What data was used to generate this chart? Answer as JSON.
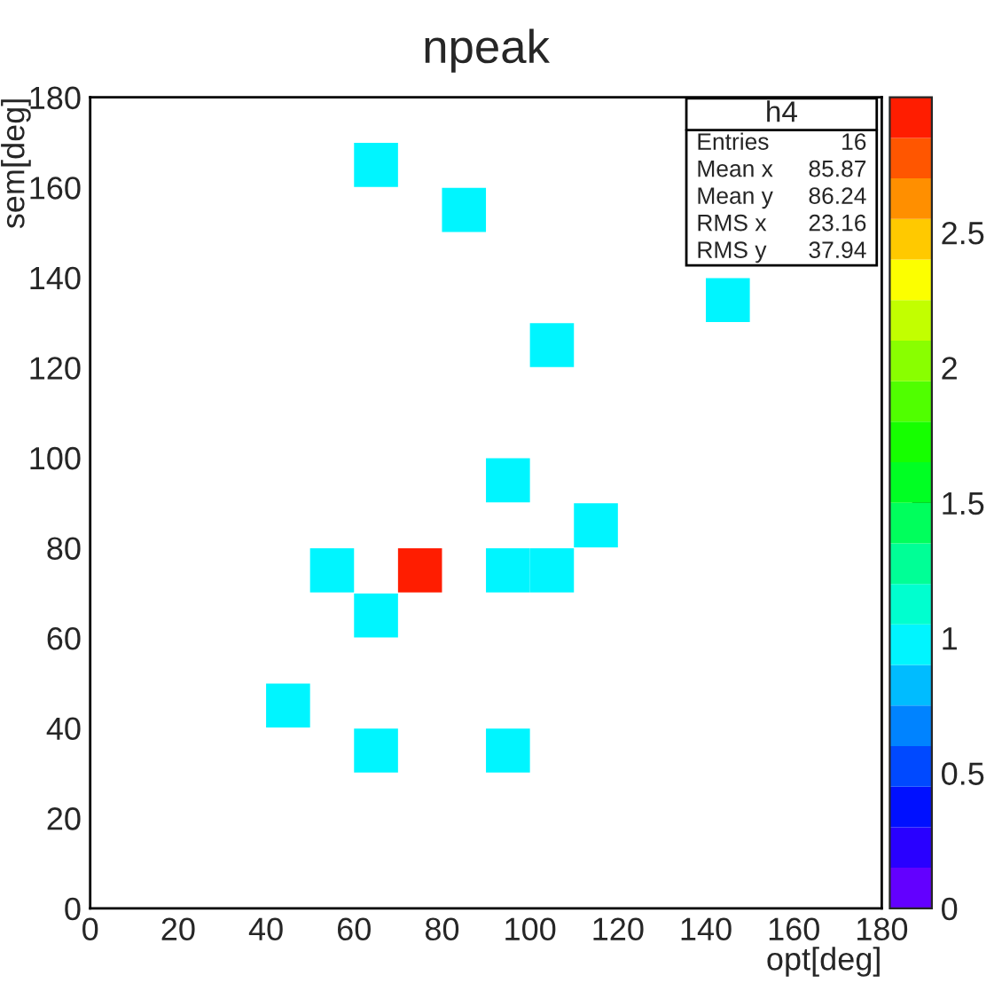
{
  "chart_data": {
    "type": "scatter",
    "title": "npeak",
    "xlabel": "opt[deg]",
    "ylabel": "sem[deg]",
    "marker": "square",
    "x": [
      65,
      85,
      145,
      105,
      95,
      115,
      55,
      75,
      95,
      105,
      65,
      45,
      65,
      95
    ],
    "values": [
      165,
      155,
      135,
      125,
      95,
      85,
      75,
      75,
      75,
      75,
      65,
      45,
      35,
      35
    ],
    "cvalues": [
      1,
      1,
      1,
      1,
      1,
      1,
      1,
      3,
      1,
      1,
      1,
      1,
      1,
      1
    ],
    "xlim": [
      0,
      180
    ],
    "xticks": [
      0,
      20,
      40,
      60,
      80,
      100,
      120,
      140,
      160,
      180
    ],
    "ylim": [
      0,
      180
    ],
    "yticks": [
      0,
      20,
      40,
      60,
      80,
      100,
      120,
      140,
      160,
      180
    ],
    "clim": [
      0,
      3
    ],
    "cticks": [
      0,
      0.5,
      1,
      1.5,
      2,
      2.5
    ],
    "annotations": [
      "h4",
      "Entries",
      "16",
      "Mean x",
      "85.87",
      "Mean y",
      "86.24",
      "RMS x",
      "23.16",
      "RMS y",
      "37.94"
    ]
  }
}
